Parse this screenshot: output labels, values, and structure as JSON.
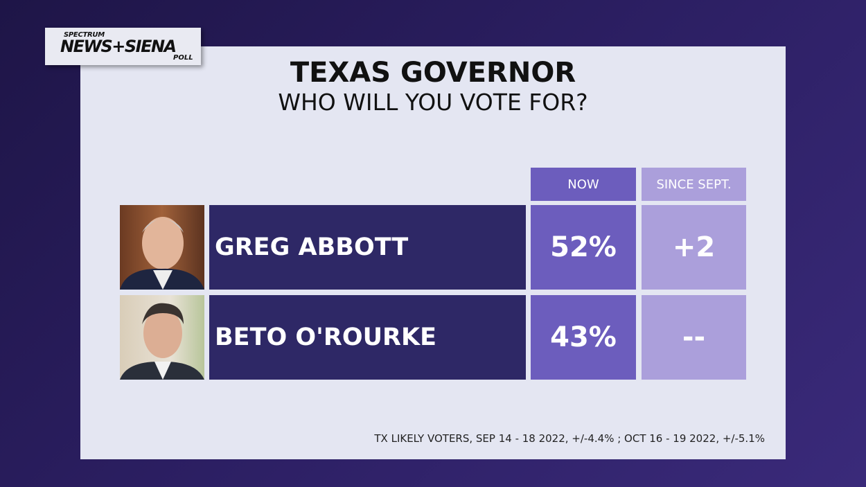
{
  "logo": {
    "line1": "SPECTRUM",
    "line2": "NEWS+SIENA",
    "line3": "POLL"
  },
  "colors": {
    "background": "#2a1d5c",
    "panel": "#e4e6f2",
    "name_bar": "#2e2866",
    "now": "#6c5dbd",
    "since": "#ab9fdb"
  },
  "chart_data": {
    "type": "table",
    "title": "TEXAS GOVERNOR",
    "subtitle": "WHO WILL YOU VOTE FOR?",
    "columns": [
      "NOW",
      "SINCE SEPT."
    ],
    "rows": [
      {
        "name": "GREG ABBOTT",
        "now": "52%",
        "since": "+2",
        "now_value": 52,
        "change": 2
      },
      {
        "name": "BETO O'ROURKE",
        "now": "43%",
        "since": "--",
        "now_value": 43,
        "change": null
      }
    ],
    "footnote": "TX LIKELY VOTERS, SEP 14 - 18 2022, +/-4.4% ; OCT 16 - 19 2022, +/-5.1%"
  }
}
